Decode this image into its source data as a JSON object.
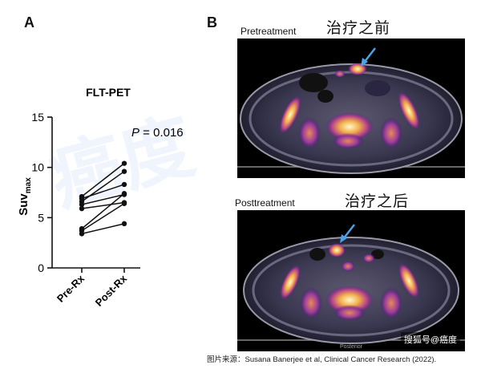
{
  "panel_a_letter": "A",
  "panel_b_letter": "B",
  "chart_data": {
    "type": "line",
    "title": "FLT-PET",
    "ylabel_main": "Suv",
    "ylabel_sub": "max",
    "xlabel": "",
    "categories": [
      "Pre-Rx",
      "Post-Rx"
    ],
    "ylim": [
      0,
      15
    ],
    "yticks": [
      0,
      5,
      10,
      15
    ],
    "annotation_p": "P",
    "annotation_value": " = 0.016",
    "series": [
      {
        "values": [
          7.1,
          10.4
        ]
      },
      {
        "values": [
          6.9,
          8.3
        ]
      },
      {
        "values": [
          6.6,
          9.6
        ]
      },
      {
        "values": [
          6.3,
          7.3
        ]
      },
      {
        "values": [
          5.9,
          6.5
        ]
      },
      {
        "values": [
          3.9,
          7.4
        ]
      },
      {
        "values": [
          3.7,
          6.4
        ]
      },
      {
        "values": [
          3.4,
          4.4
        ]
      }
    ]
  },
  "scans": {
    "pre_label": "Pretreatment",
    "pre_cn": "治疗之前",
    "post_label": "Posttreatment",
    "post_cn": "治疗之后",
    "posterior_text": "Posterior",
    "arrow_color": "#4aa3e8"
  },
  "credit": "图片来源：Susana Banerjee et al, Clinical Cancer Research (2022).",
  "watermark": "搜狐号@癌度",
  "bg_watermark": "癌度"
}
